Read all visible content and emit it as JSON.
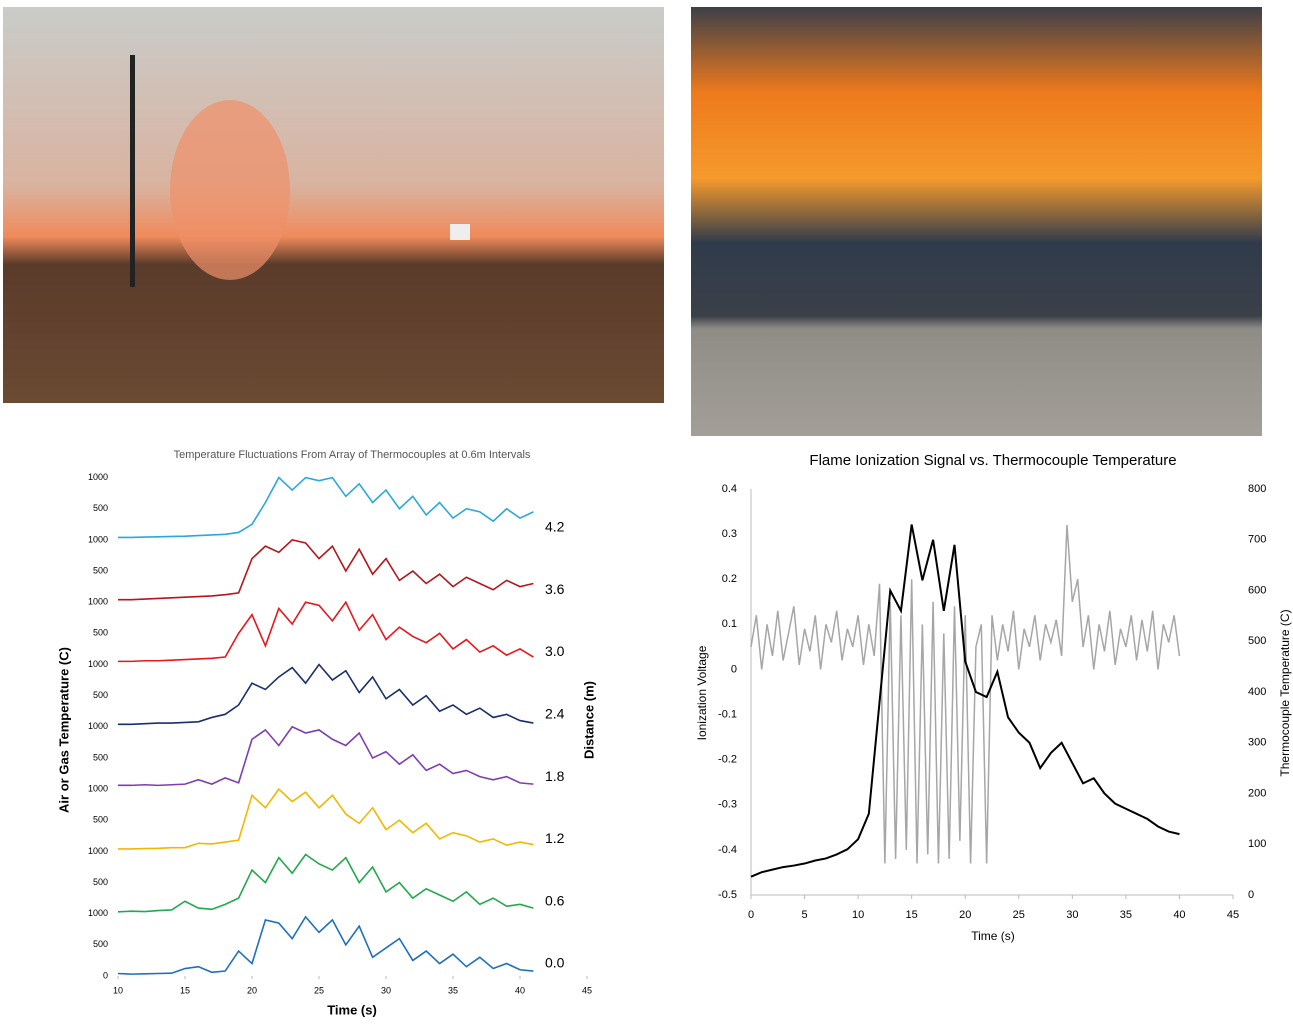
{
  "chart_data": [
    {
      "type": "ridgeline",
      "title": "Temperature Fluctuations From Array of Thermocouples at 0.6m Intervals",
      "x_label": "Time (s)",
      "y_label": "Air or Gas Temperature (C)",
      "y2_label": "Distance (m)",
      "xlim": [
        10,
        45
      ],
      "xticks": [
        10,
        15,
        20,
        25,
        30,
        35,
        40,
        45
      ],
      "ylim": [
        0,
        1000
      ],
      "x": [
        10,
        11,
        12,
        13,
        14,
        15,
        16,
        17,
        18,
        19,
        20,
        21,
        22,
        23,
        24,
        25,
        26,
        27,
        28,
        29,
        30,
        31,
        32,
        33,
        34,
        35,
        36,
        37,
        38,
        39,
        40,
        41
      ],
      "series": [
        {
          "name": "0.0",
          "color": "#1f6fbf",
          "yticks": [
            0,
            500,
            1000
          ],
          "values": [
            40,
            30,
            35,
            40,
            45,
            120,
            150,
            60,
            80,
            400,
            200,
            900,
            850,
            600,
            950,
            700,
            900,
            500,
            800,
            300,
            450,
            600,
            250,
            400,
            200,
            350,
            150,
            300,
            120,
            200,
            100,
            80
          ]
        },
        {
          "name": "0.6",
          "color": "#22a94b",
          "yticks": [
            500,
            1000
          ],
          "values": [
            30,
            40,
            35,
            50,
            60,
            200,
            90,
            70,
            150,
            250,
            700,
            500,
            900,
            650,
            950,
            800,
            700,
            900,
            500,
            750,
            350,
            500,
            250,
            400,
            300,
            200,
            350,
            150,
            250,
            120,
            150,
            90
          ]
        },
        {
          "name": "1.2",
          "color": "#f2b700",
          "yticks": [
            500,
            1000
          ],
          "values": [
            40,
            40,
            45,
            50,
            60,
            60,
            130,
            120,
            150,
            180,
            900,
            700,
            1000,
            800,
            950,
            700,
            900,
            600,
            450,
            700,
            350,
            500,
            300,
            450,
            200,
            300,
            250,
            150,
            200,
            100,
            150,
            110
          ]
        },
        {
          "name": "1.8",
          "color": "#7b3fb5",
          "yticks": [
            500,
            1000
          ],
          "values": [
            60,
            60,
            70,
            60,
            70,
            80,
            150,
            80,
            180,
            100,
            800,
            950,
            700,
            1000,
            900,
            950,
            800,
            700,
            900,
            500,
            600,
            400,
            550,
            300,
            400,
            250,
            300,
            200,
            150,
            200,
            100,
            80
          ]
        },
        {
          "name": "2.4",
          "color": "#1a2f6b",
          "yticks": [
            500,
            1000
          ],
          "values": [
            40,
            40,
            50,
            60,
            60,
            70,
            80,
            150,
            200,
            350,
            700,
            600,
            800,
            950,
            700,
            1000,
            750,
            900,
            550,
            800,
            450,
            600,
            350,
            500,
            250,
            350,
            200,
            300,
            150,
            200,
            100,
            60
          ]
        },
        {
          "name": "3.0",
          "color": "#e8171b",
          "yticks": [
            500,
            1000
          ],
          "values": [
            50,
            50,
            60,
            60,
            70,
            80,
            90,
            100,
            120,
            500,
            800,
            300,
            900,
            650,
            1000,
            950,
            700,
            1000,
            550,
            800,
            400,
            600,
            450,
            350,
            500,
            250,
            400,
            200,
            300,
            150,
            250,
            120
          ]
        },
        {
          "name": "3.6",
          "color": "#b5151b",
          "yticks": [
            500,
            1000
          ],
          "values": [
            40,
            40,
            50,
            60,
            70,
            80,
            90,
            100,
            120,
            150,
            700,
            900,
            800,
            1000,
            950,
            700,
            900,
            500,
            850,
            450,
            700,
            350,
            500,
            300,
            450,
            250,
            400,
            300,
            200,
            350,
            250,
            300
          ]
        },
        {
          "name": "4.2",
          "color": "#29a8e0",
          "yticks": [
            500,
            1000
          ],
          "values": [
            40,
            40,
            45,
            50,
            55,
            60,
            70,
            80,
            90,
            120,
            250,
            600,
            1000,
            800,
            1000,
            950,
            1000,
            700,
            900,
            600,
            800,
            500,
            700,
            400,
            600,
            350,
            500,
            450,
            300,
            500,
            350,
            450
          ]
        }
      ]
    },
    {
      "type": "line",
      "title": "Flame Ionization Signal vs. Thermocouple Temperature",
      "x_label": "Time (s)",
      "y_label": "Ionization Voltage",
      "y2_label": "Thermocouple Temperature (C)",
      "xlim": [
        0,
        45
      ],
      "xticks": [
        0,
        5,
        10,
        15,
        20,
        25,
        30,
        35,
        40,
        45
      ],
      "ylim": [
        -0.5,
        0.4
      ],
      "yticks": [
        -0.5,
        -0.4,
        -0.3,
        -0.2,
        -0.1,
        0,
        0.1,
        0.2,
        0.3,
        0.4
      ],
      "y2lim": [
        0,
        800
      ],
      "y2ticks": [
        0,
        100,
        200,
        300,
        400,
        500,
        600,
        700,
        800
      ],
      "series": [
        {
          "color": "#a6a6a6",
          "x": [
            0,
            0.5,
            1,
            1.5,
            2,
            2.5,
            3,
            3.5,
            4,
            4.5,
            5,
            5.5,
            6,
            6.5,
            7,
            7.5,
            8,
            8.5,
            9,
            9.5,
            10,
            10.5,
            11,
            11.5,
            12,
            12.5,
            13,
            13.5,
            14,
            14.5,
            15,
            15.5,
            16,
            16.5,
            17,
            17.5,
            18,
            18.5,
            19,
            19.5,
            20,
            20.5,
            21,
            21.5,
            22,
            22.5,
            23,
            23.5,
            24,
            24.5,
            25,
            25.5,
            26,
            26.5,
            27,
            27.5,
            28,
            28.5,
            29,
            29.5,
            30,
            30.5,
            31,
            31.5,
            32,
            32.5,
            33,
            33.5,
            34,
            34.5,
            35,
            35.5,
            36,
            36.5,
            37,
            37.5,
            38,
            38.5,
            39,
            39.5,
            40
          ],
          "values": [
            0.05,
            0.12,
            0.0,
            0.1,
            0.03,
            0.13,
            0.02,
            0.08,
            0.14,
            0.01,
            0.09,
            0.04,
            0.12,
            0.0,
            0.1,
            0.06,
            0.13,
            0.02,
            0.09,
            0.05,
            0.12,
            0.01,
            0.1,
            0.03,
            0.19,
            -0.43,
            0.15,
            -0.42,
            0.12,
            -0.4,
            0.2,
            -0.43,
            0.1,
            -0.41,
            0.15,
            -0.43,
            0.08,
            -0.42,
            0.14,
            -0.38,
            0.12,
            -0.43,
            0.05,
            0.1,
            -0.43,
            0.12,
            0.02,
            0.1,
            0.04,
            0.13,
            0.0,
            0.09,
            0.05,
            0.12,
            0.02,
            0.1,
            0.06,
            0.11,
            0.03,
            0.32,
            0.15,
            0.2,
            0.05,
            0.12,
            0.0,
            0.1,
            0.04,
            0.13,
            0.01,
            0.09,
            0.05,
            0.12,
            0.02,
            0.11,
            0.04,
            0.13,
            0.0,
            0.1,
            0.06,
            0.12,
            0.03
          ]
        },
        {
          "color": "#000000",
          "axis": "y2",
          "x": [
            0,
            1,
            2,
            3,
            4,
            5,
            6,
            7,
            8,
            9,
            10,
            11,
            12,
            13,
            14,
            15,
            16,
            17,
            18,
            19,
            20,
            21,
            22,
            23,
            24,
            25,
            26,
            27,
            28,
            29,
            30,
            31,
            32,
            33,
            34,
            35,
            36,
            37,
            38,
            39,
            40
          ],
          "values": [
            36,
            45,
            50,
            55,
            58,
            62,
            68,
            72,
            80,
            90,
            110,
            160,
            380,
            600,
            560,
            730,
            620,
            700,
            560,
            690,
            460,
            400,
            390,
            440,
            350,
            320,
            300,
            250,
            280,
            300,
            260,
            220,
            230,
            200,
            180,
            170,
            160,
            150,
            135,
            125,
            120
          ]
        }
      ]
    }
  ]
}
